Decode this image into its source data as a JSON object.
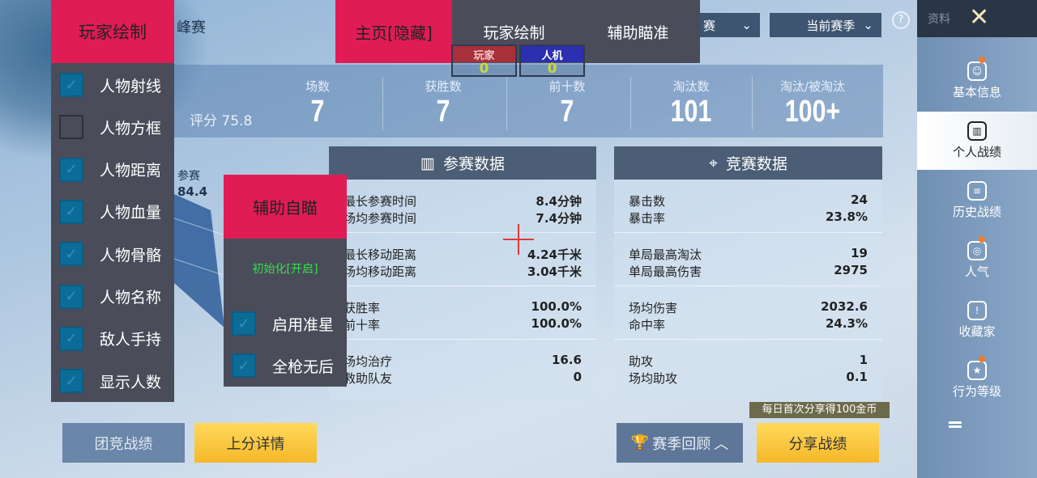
{
  "background_title_partial": "峰赛",
  "esp_menu": {
    "title": "玩家绘制",
    "items": [
      {
        "label": "人物射线",
        "checked": true
      },
      {
        "label": "人物方框",
        "checked": false
      },
      {
        "label": "人物距离",
        "checked": true
      },
      {
        "label": "人物血量",
        "checked": true
      },
      {
        "label": "人物骨骼",
        "checked": true
      },
      {
        "label": "人物名称",
        "checked": true
      },
      {
        "label": "敌人手持",
        "checked": true
      },
      {
        "label": "显示人数",
        "checked": true
      }
    ]
  },
  "tabs": {
    "home": "主页[隐藏]",
    "player_draw": "玩家绘制",
    "aim_assist": "辅助瞄准"
  },
  "counters": {
    "player_label": "玩家",
    "player_count": "0",
    "bot_label": "人机",
    "bot_count": "0"
  },
  "filters": {
    "mode": "赛",
    "season": "当前赛季"
  },
  "help_icon": "question-circle-icon",
  "sidebar": {
    "title": "资料",
    "items": [
      {
        "label": "基本信息",
        "icon": "profile-icon",
        "badge": true
      },
      {
        "label": "个人战绩",
        "icon": "stats-doc-icon",
        "active": true
      },
      {
        "label": "历史战绩",
        "icon": "history-doc-icon"
      },
      {
        "label": "人气",
        "icon": "popularity-icon",
        "badge": true
      },
      {
        "label": "收藏家",
        "icon": "collector-icon"
      },
      {
        "label": "行为等级",
        "icon": "behavior-icon",
        "badge": true
      }
    ]
  },
  "summary": {
    "rating": "评分 75.8",
    "stats": [
      {
        "label": "场数",
        "value": "7"
      },
      {
        "label": "获胜数",
        "value": "7"
      },
      {
        "label": "前十数",
        "value": "7"
      },
      {
        "label": "淘汰数",
        "value": "101"
      },
      {
        "label": "淘汰/被淘汰",
        "value": "100+"
      }
    ]
  },
  "radar": {
    "label": "参赛",
    "value": "84.4"
  },
  "participation": {
    "title": "参赛数据",
    "groups": [
      [
        {
          "k": "最长参赛时间",
          "v": "8.4分钟"
        },
        {
          "k": "场均参赛时间",
          "v": "7.4分钟"
        }
      ],
      [
        {
          "k": "最长移动距离",
          "v": "4.24千米"
        },
        {
          "k": "场均移动距离",
          "v": "3.04千米"
        }
      ],
      [
        {
          "k": "获胜率",
          "v": "100.0%"
        },
        {
          "k": "前十率",
          "v": "100.0%"
        }
      ],
      [
        {
          "k": "场均治疗",
          "v": "16.6"
        },
        {
          "k": "救助队友",
          "v": "0"
        }
      ]
    ]
  },
  "competition": {
    "title": "竞赛数据",
    "groups": [
      [
        {
          "k": "暴击数",
          "v": "24"
        },
        {
          "k": "暴击率",
          "v": "23.8%"
        }
      ],
      [
        {
          "k": "单局最高淘汰",
          "v": "19"
        },
        {
          "k": "单局最高伤害",
          "v": "2975"
        }
      ],
      [
        {
          "k": "场均伤害",
          "v": "2032.6"
        },
        {
          "k": "命中率",
          "v": "24.3%"
        }
      ],
      [
        {
          "k": "助攻",
          "v": "1"
        },
        {
          "k": "场均助攻",
          "v": "0.1"
        }
      ]
    ]
  },
  "aim_menu": {
    "title": "辅助自瞄",
    "status": "初始化[开启]",
    "status_color": "#35e04a",
    "items": [
      {
        "label": "启用准星",
        "checked": true
      },
      {
        "label": "全枪无后",
        "checked": true
      }
    ]
  },
  "buttons": {
    "team": "团竞战绩",
    "rank": "上分详情",
    "season_review": "赛季回顾",
    "share": "分享战绩",
    "share_tip": "每日首次分享得100金币"
  },
  "colors": {
    "accent_red": "#e01c55",
    "panel_dark": "#4a4c5a",
    "checkbox": "#0b6c98",
    "yellow": "#f5b82a"
  }
}
